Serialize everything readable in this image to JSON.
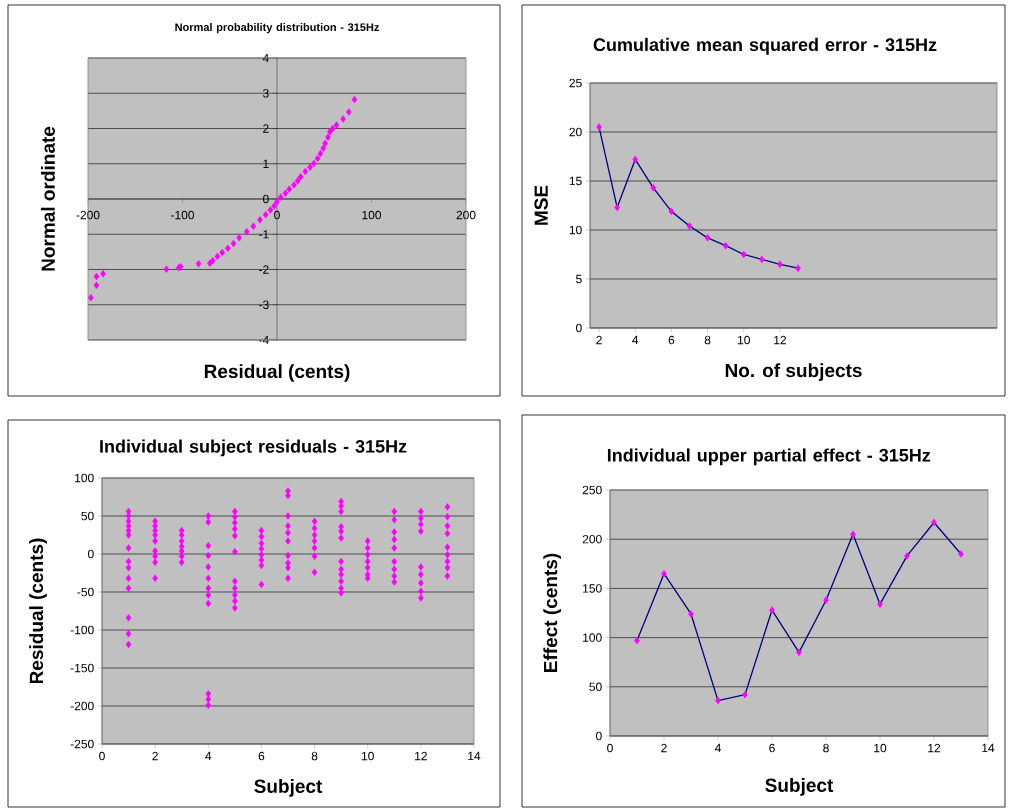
{
  "chart_data": [
    {
      "type": "scatter",
      "title": "Normal probability distribution - 315Hz",
      "xlabel": "Residual (cents)",
      "ylabel": "Normal ordinate",
      "xlim": [
        -200,
        200
      ],
      "ylim": [
        -4,
        4
      ],
      "xticks": [
        -200,
        -100,
        0,
        100,
        200
      ],
      "yticks": [
        -4,
        -3,
        -2,
        -1,
        0,
        1,
        2,
        3,
        4
      ],
      "grid": "y",
      "marker": "diamond",
      "series": [
        {
          "color": "#ff00ff",
          "x": [
            -197,
            -191,
            -191,
            -184,
            -117,
            -104,
            -102,
            -83,
            -71,
            -68,
            -63,
            -58,
            -52,
            -46,
            -40,
            -32,
            -25,
            -18,
            -12,
            -7,
            -3,
            0,
            4,
            9,
            13,
            18,
            22,
            25,
            30,
            35,
            39,
            43,
            46,
            49,
            51,
            54,
            56,
            59,
            63,
            70,
            76,
            82
          ],
          "values": [
            -2.8,
            -2.45,
            -2.2,
            -2.12,
            -1.99,
            -1.95,
            -1.92,
            -1.84,
            -1.82,
            -1.75,
            -1.63,
            -1.52,
            -1.4,
            -1.26,
            -1.1,
            -0.93,
            -0.77,
            -0.59,
            -0.45,
            -0.31,
            -0.2,
            -0.08,
            0.05,
            0.16,
            0.28,
            0.4,
            0.52,
            0.63,
            0.78,
            0.9,
            1.01,
            1.15,
            1.29,
            1.44,
            1.58,
            1.75,
            1.91,
            2.0,
            2.1,
            2.27,
            2.47,
            2.82
          ]
        }
      ]
    },
    {
      "type": "line",
      "title": "Cumulative mean squared error - 315Hz",
      "xlabel": "No. of subjects",
      "ylabel": "MSE",
      "xlim": [
        1.5,
        24
      ],
      "ylim": [
        0,
        25
      ],
      "xticks": [
        2,
        4,
        6,
        8,
        10,
        12
      ],
      "yticks": [
        0,
        5,
        10,
        15,
        20,
        25
      ],
      "grid": "y",
      "marker": "diamond",
      "series": [
        {
          "color": "#000080",
          "x": [
            2,
            3,
            4,
            5,
            6,
            7,
            8,
            9,
            10,
            11,
            12,
            13
          ],
          "values": [
            20.5,
            12.3,
            17.2,
            14.3,
            11.9,
            10.4,
            9.2,
            8.4,
            7.5,
            7.0,
            6.5,
            6.1
          ],
          "colors": [
            "#ff00ff",
            "#ff00ff",
            "#ff00ff",
            "#ff00ff",
            "#ff00ff",
            "#ff00ff",
            "#ff00ff",
            "#ff00ff",
            "#ff00ff",
            "#ff00ff",
            "#ff00ff",
            "#ff00ff"
          ]
        }
      ]
    },
    {
      "type": "scatter",
      "title": "Individual subject residuals - 315Hz",
      "xlabel": "Subject",
      "ylabel": "Residual (cents)",
      "xlim": [
        0,
        14
      ],
      "ylim": [
        -250,
        100
      ],
      "xticks": [
        0,
        2,
        4,
        6,
        8,
        10,
        12,
        14
      ],
      "yticks": [
        -250,
        -200,
        -150,
        -100,
        -50,
        0,
        50,
        100
      ],
      "grid": "y",
      "marker": "diamond",
      "series": [
        {
          "color": "#ff00ff",
          "x": [
            1,
            1,
            1,
            1,
            1,
            1,
            1,
            1,
            1,
            1,
            1,
            1,
            1,
            1,
            2,
            2,
            2,
            2,
            2,
            2,
            2,
            2,
            2,
            3,
            3,
            3,
            3,
            3,
            3,
            3,
            4,
            4,
            4,
            4,
            4,
            4,
            4,
            4,
            4,
            4,
            4,
            4,
            5,
            5,
            5,
            5,
            5,
            5,
            5,
            5,
            5,
            5,
            5,
            6,
            6,
            6,
            6,
            6,
            6,
            6,
            6,
            7,
            7,
            7,
            7,
            7,
            7,
            7,
            7,
            7,
            7,
            8,
            8,
            8,
            8,
            8,
            8,
            8,
            9,
            9,
            9,
            9,
            9,
            9,
            9,
            9,
            9,
            9,
            9,
            9,
            10,
            10,
            10,
            10,
            10,
            10,
            10,
            11,
            11,
            11,
            11,
            11,
            11,
            11,
            11,
            11,
            12,
            12,
            12,
            12,
            12,
            12,
            12,
            12,
            12,
            13,
            13,
            13,
            13,
            13,
            13,
            13,
            13,
            13
          ],
          "values": [
            56,
            50,
            43,
            37,
            31,
            25,
            8,
            -10,
            -18,
            -32,
            -45,
            -84,
            -105,
            -119,
            43,
            37,
            31,
            25,
            17,
            4,
            -3,
            -11,
            -32,
            31,
            25,
            17,
            10,
            4,
            -3,
            -11,
            50,
            42,
            11,
            -2,
            -17,
            -32,
            -45,
            -54,
            -65,
            -184,
            -191,
            -199,
            56,
            49,
            41,
            33,
            24,
            3,
            -36,
            -45,
            -54,
            -62,
            -71,
            31,
            23,
            14,
            7,
            -1,
            -8,
            -15,
            -40,
            83,
            77,
            50,
            37,
            28,
            17,
            -2,
            -12,
            -18,
            -32,
            43,
            34,
            25,
            17,
            8,
            -3,
            -24,
            69,
            63,
            56,
            36,
            30,
            21,
            -10,
            -20,
            -27,
            -36,
            -45,
            -51,
            17,
            8,
            -1,
            -10,
            -18,
            -27,
            -32,
            56,
            45,
            29,
            19,
            8,
            -10,
            -20,
            -29,
            -37,
            56,
            47,
            39,
            30,
            -17,
            -27,
            -38,
            -49,
            -58,
            62,
            49,
            37,
            27,
            9,
            -1,
            -10,
            -18,
            -29
          ]
        }
      ]
    },
    {
      "type": "line",
      "title": "Individual upper partial effect - 315Hz",
      "xlabel": "Subject",
      "ylabel": "Effect (cents)",
      "xlim": [
        0,
        14
      ],
      "ylim": [
        0,
        250
      ],
      "xticks": [
        0,
        2,
        4,
        6,
        8,
        10,
        12,
        14
      ],
      "yticks": [
        0,
        50,
        100,
        150,
        200,
        250
      ],
      "grid": "y",
      "marker": "diamond",
      "series": [
        {
          "color": "#000080",
          "x": [
            1,
            2,
            3,
            4,
            5,
            6,
            7,
            8,
            9,
            10,
            11,
            12,
            13
          ],
          "values": [
            97,
            165,
            124,
            36,
            42,
            128,
            85,
            138,
            205,
            134,
            183,
            217,
            185
          ],
          "colors": [
            "#ff00ff",
            "#ff00ff",
            "#ff00ff",
            "#ff00ff",
            "#ff00ff",
            "#ff00ff",
            "#ff00ff",
            "#ff00ff",
            "#ff00ff",
            "#ff00ff",
            "#ff00ff",
            "#ff00ff",
            "#ff00ff"
          ]
        }
      ]
    }
  ]
}
